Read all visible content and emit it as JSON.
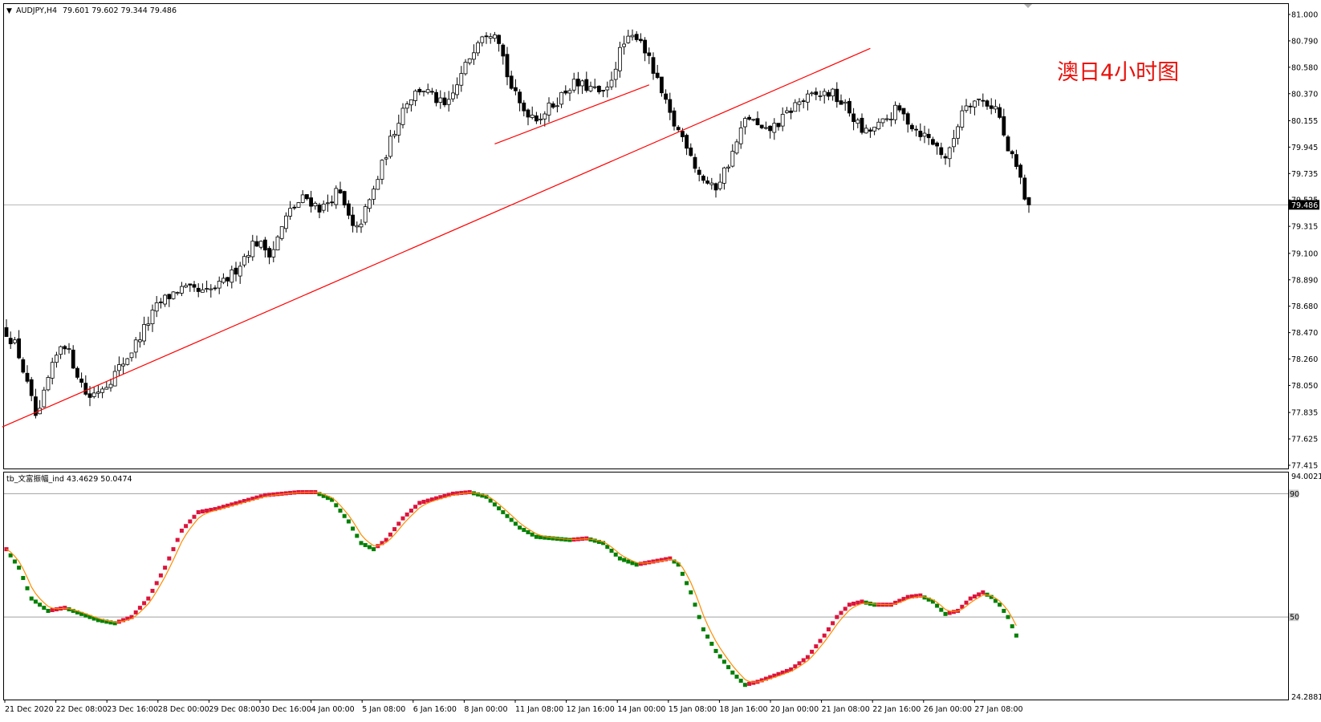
{
  "header": {
    "symbol": "AUDJPY,H4",
    "ohlc": "79.601 79.602 79.344 79.486"
  },
  "annotation": "澳日4小时图",
  "indicator": {
    "label": "tb_文富振幅_ind 43.4629 50.0474",
    "top_value": "94.0021",
    "bottom_value": "24.2881",
    "level_high": "90",
    "level_mid": "50"
  },
  "colors": {
    "up_candle": "#ffffff",
    "down_candle": "#000000",
    "trendline": "#ff0000",
    "signal_line": "#ff8c00",
    "dot_up": "#dc143c",
    "dot_down": "#008000",
    "price_tag_bg": "#000000"
  },
  "chart_data": [
    {
      "type": "candlestick",
      "symbol": "AUDJPY",
      "timeframe": "H4",
      "ylim": [
        77.415,
        81.0
      ],
      "y_ticks": [
        "81.000",
        "80.790",
        "80.580",
        "80.370",
        "80.155",
        "79.945",
        "79.735",
        "79.525",
        "79.315",
        "79.100",
        "78.890",
        "78.680",
        "78.470",
        "78.260",
        "78.050",
        "77.835",
        "77.625",
        "77.415"
      ],
      "x_ticks": [
        "21 Dec 2020",
        "22 Dec 08:00",
        "23 Dec 16:00",
        "28 Dec 00:00",
        "29 Dec 08:00",
        "30 Dec 16:00",
        "4 Jan 00:00",
        "5 Jan 08:00",
        "6 Jan 16:00",
        "8 Jan 00:00",
        "11 Jan 08:00",
        "12 Jan 16:00",
        "14 Jan 00:00",
        "15 Jan 08:00",
        "18 Jan 16:00",
        "20 Jan 00:00",
        "21 Jan 08:00",
        "22 Jan 16:00",
        "26 Jan 00:00",
        "27 Jan 08:00"
      ],
      "current_price": "79.486",
      "path": [
        [
          0,
          78.5
        ],
        [
          3,
          78.35
        ],
        [
          8,
          77.75
        ],
        [
          10,
          78.05
        ],
        [
          14,
          78.42
        ],
        [
          20,
          77.95
        ],
        [
          25,
          78.08
        ],
        [
          30,
          78.3
        ],
        [
          37,
          78.7
        ],
        [
          42,
          78.82
        ],
        [
          48,
          78.78
        ],
        [
          52,
          78.85
        ],
        [
          55,
          78.95
        ],
        [
          60,
          79.2
        ],
        [
          64,
          79.1
        ],
        [
          68,
          79.42
        ],
        [
          72,
          79.55
        ],
        [
          76,
          79.45
        ],
        [
          80,
          79.6
        ],
        [
          84,
          79.25
        ],
        [
          88,
          79.55
        ],
        [
          92,
          79.95
        ],
        [
          96,
          80.3
        ],
        [
          100,
          80.42
        ],
        [
          106,
          80.25
        ],
        [
          110,
          80.55
        ],
        [
          114,
          80.85
        ],
        [
          118,
          80.88
        ],
        [
          121,
          80.45
        ],
        [
          124,
          80.25
        ],
        [
          128,
          80.18
        ],
        [
          132,
          80.3
        ],
        [
          136,
          80.45
        ],
        [
          140,
          80.42
        ],
        [
          144,
          80.35
        ],
        [
          148,
          80.75
        ],
        [
          152,
          80.85
        ],
        [
          156,
          80.5
        ],
        [
          160,
          80.15
        ],
        [
          164,
          79.95
        ],
        [
          166,
          79.75
        ],
        [
          170,
          79.6
        ],
        [
          174,
          79.85
        ],
        [
          178,
          80.2
        ],
        [
          182,
          80.05
        ],
        [
          186,
          80.15
        ],
        [
          190,
          80.3
        ],
        [
          194,
          80.35
        ],
        [
          198,
          80.38
        ],
        [
          202,
          80.25
        ],
        [
          206,
          80.05
        ],
        [
          210,
          80.12
        ],
        [
          214,
          80.25
        ],
        [
          218,
          80.1
        ],
        [
          222,
          80.0
        ],
        [
          226,
          79.85
        ],
        [
          230,
          80.3
        ],
        [
          234,
          80.32
        ],
        [
          238,
          80.25
        ],
        [
          240,
          79.95
        ],
        [
          243,
          79.75
        ],
        [
          245,
          79.486
        ]
      ]
    },
    {
      "type": "indicator",
      "name": "tb_文富振幅_ind",
      "ylim": [
        24.2881,
        94.0021
      ],
      "levels": [
        90,
        50
      ],
      "path": [
        [
          0,
          72
        ],
        [
          3,
          66
        ],
        [
          6,
          56
        ],
        [
          10,
          52
        ],
        [
          14,
          53
        ],
        [
          18,
          51
        ],
        [
          22,
          49
        ],
        [
          26,
          48
        ],
        [
          30,
          50
        ],
        [
          34,
          56
        ],
        [
          38,
          66
        ],
        [
          42,
          78
        ],
        [
          46,
          84
        ],
        [
          50,
          85
        ],
        [
          54,
          86.5
        ],
        [
          58,
          88
        ],
        [
          62,
          89.5
        ],
        [
          66,
          90
        ],
        [
          70,
          90.5
        ],
        [
          74,
          90.5
        ],
        [
          78,
          88
        ],
        [
          82,
          81
        ],
        [
          85,
          74
        ],
        [
          88,
          72
        ],
        [
          91,
          75
        ],
        [
          95,
          82
        ],
        [
          99,
          87
        ],
        [
          103,
          88.5
        ],
        [
          107,
          90
        ],
        [
          111,
          90.5
        ],
        [
          115,
          89
        ],
        [
          119,
          84
        ],
        [
          123,
          79
        ],
        [
          127,
          76
        ],
        [
          131,
          75.5
        ],
        [
          135,
          75
        ],
        [
          139,
          75.5
        ],
        [
          143,
          74
        ],
        [
          147,
          69
        ],
        [
          151,
          67
        ],
        [
          155,
          68
        ],
        [
          159,
          69
        ],
        [
          161,
          67
        ],
        [
          164,
          58
        ],
        [
          167,
          46
        ],
        [
          170,
          39
        ],
        [
          174,
          32
        ],
        [
          177,
          28
        ],
        [
          180,
          29
        ],
        [
          184,
          31
        ],
        [
          188,
          33
        ],
        [
          192,
          37
        ],
        [
          196,
          44
        ],
        [
          199,
          50
        ],
        [
          202,
          54
        ],
        [
          205,
          55
        ],
        [
          208,
          54
        ],
        [
          212,
          54
        ],
        [
          216,
          56.5
        ],
        [
          219,
          57
        ],
        [
          222,
          55
        ],
        [
          225,
          51
        ],
        [
          228,
          52
        ],
        [
          231,
          56
        ],
        [
          234,
          58
        ],
        [
          236,
          56.5
        ],
        [
          238,
          54
        ],
        [
          240,
          50
        ],
        [
          242,
          44
        ]
      ]
    }
  ]
}
